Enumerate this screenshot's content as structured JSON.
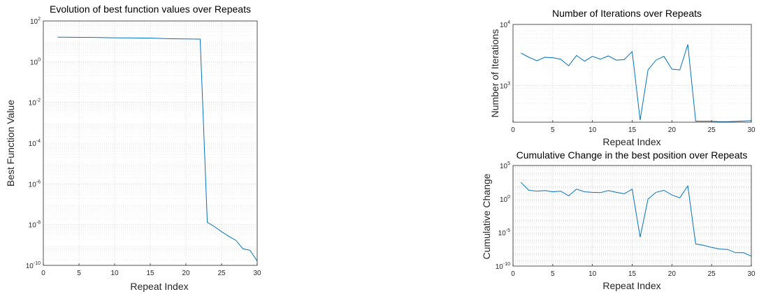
{
  "chart_data": [
    {
      "type": "line",
      "title": "Evolution of best function values over Repeats",
      "xlabel": "Repeat Index",
      "ylabel": "Best Function Value",
      "xlim": [
        0,
        30
      ],
      "ylim": [
        1e-10,
        100
      ],
      "yscale": "log",
      "grid": true,
      "xticks": [
        0,
        5,
        10,
        15,
        20,
        25,
        30
      ],
      "yticks": [
        -10,
        -8,
        -6,
        -4,
        -2,
        0,
        2
      ],
      "series": [
        {
          "color": "#0072bd",
          "x": [
            2,
            3,
            4,
            5,
            6,
            7,
            8,
            9,
            10,
            11,
            12,
            13,
            14,
            15,
            16,
            17,
            18,
            19,
            20,
            21,
            22,
            23,
            24,
            25,
            26,
            27,
            28,
            29,
            30
          ],
          "y": [
            16,
            16,
            15.8,
            15.7,
            15.6,
            15.5,
            15.4,
            15,
            14.9,
            14.8,
            14.7,
            14.6,
            14.5,
            14.4,
            14,
            13.6,
            13.4,
            13.2,
            13,
            12.9,
            12.8,
            1.3e-08,
            8e-09,
            4.5e-09,
            2.7e-09,
            1.7e-09,
            6.5e-10,
            5.5e-10,
            1.6e-10
          ]
        }
      ]
    },
    {
      "type": "line",
      "title": "Number of Iterations over Repeats",
      "xlabel": "Repeat Index",
      "ylabel": "Number of Iterations",
      "xlim": [
        0,
        30
      ],
      "ylim": [
        250,
        10000
      ],
      "yscale": "log",
      "grid": true,
      "xticks": [
        0,
        5,
        10,
        15,
        20,
        25,
        30
      ],
      "yticks": [
        3,
        4
      ],
      "series": [
        {
          "color": "#0072bd",
          "x": [
            1,
            2,
            3,
            4,
            5,
            6,
            7,
            8,
            9,
            10,
            11,
            12,
            13,
            14,
            15,
            16,
            17,
            18,
            19,
            20,
            21,
            22,
            23,
            24,
            25,
            26,
            27,
            28,
            29,
            30
          ],
          "y": [
            3400,
            2900,
            2550,
            2900,
            2850,
            2700,
            2100,
            3100,
            2500,
            3000,
            2700,
            3050,
            2600,
            2650,
            3600,
            270,
            1800,
            2600,
            3000,
            1850,
            1800,
            4700,
            260,
            260,
            260,
            255,
            255,
            258,
            262,
            265
          ]
        }
      ]
    },
    {
      "type": "line",
      "title": "Cumulative Change in the best position over Repeats",
      "xlabel": "Repeat Index",
      "ylabel": "Cumulative Change",
      "xlim": [
        0,
        30
      ],
      "ylim": [
        1e-10,
        100000.0
      ],
      "yscale": "log",
      "grid": true,
      "xticks": [
        0,
        5,
        10,
        15,
        20,
        25,
        30
      ],
      "yticks": [
        -10,
        -5,
        0,
        5
      ],
      "series": [
        {
          "color": "#0072bd",
          "x": [
            1,
            2,
            3,
            4,
            5,
            6,
            7,
            8,
            9,
            10,
            11,
            12,
            13,
            14,
            15,
            16,
            17,
            18,
            19,
            20,
            21,
            22,
            23,
            24,
            25,
            26,
            27,
            28,
            29,
            30
          ],
          "y": [
            300,
            20,
            15,
            18,
            12,
            15,
            3,
            30,
            12,
            10,
            9,
            18,
            10,
            6,
            30,
            2e-06,
            1,
            10,
            20,
            4,
            1.5,
            90,
            2e-07,
            1.2e-07,
            6e-08,
            3.5e-08,
            3e-08,
            1e-08,
            1e-08,
            3e-09
          ]
        }
      ]
    }
  ]
}
